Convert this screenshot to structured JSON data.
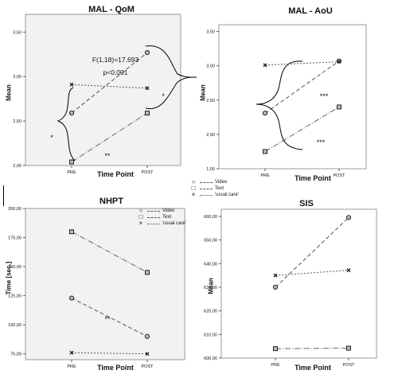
{
  "chart_data": [
    {
      "type": "line",
      "title": "MAL - QoM",
      "xlabel": "Time Point",
      "ylabel": "Mean",
      "categories": [
        "PRE",
        "POST"
      ],
      "yticks": [
        "2,00",
        "2,50",
        "3,00",
        "3,50"
      ],
      "ylim": [
        2.0,
        3.7
      ],
      "series": [
        {
          "values": [
            2.59,
            3.27
          ],
          "marker": "circle"
        },
        {
          "values": [
            2.04,
            2.59
          ],
          "marker": "square"
        },
        {
          "values": [
            2.91,
            2.87
          ],
          "marker": "cross"
        }
      ],
      "annotations": [
        "F(1,18)=17.693",
        "p<0,001",
        "*",
        "*",
        "**"
      ]
    },
    {
      "type": "line",
      "title": "MAL - AoU",
      "xlabel": "Time Point",
      "ylabel": "Mean",
      "categories": [
        "PRE",
        "POST"
      ],
      "yticks": [
        "1,50",
        "2,00",
        "2,50",
        "3,00",
        "3,50"
      ],
      "ylim": [
        1.5,
        3.6
      ],
      "series": [
        {
          "values": [
            2.31,
            3.07
          ],
          "marker": "circle"
        },
        {
          "values": [
            1.75,
            2.4
          ],
          "marker": "square"
        },
        {
          "values": [
            3.01,
            3.06
          ],
          "marker": "cross"
        }
      ],
      "annotations": [
        "***",
        "***"
      ]
    },
    {
      "type": "line",
      "title": "NHPT",
      "xlabel": "Time Point",
      "ylabel": "Time [sec.]",
      "categories": [
        "PRE",
        "POST"
      ],
      "yticks": [
        "75,00",
        "100,00",
        "125,00",
        "150,00",
        "175,00",
        "200,00"
      ],
      "ylim": [
        70,
        200
      ],
      "series": [
        {
          "values": [
            123,
            90
          ],
          "marker": "circle"
        },
        {
          "values": [
            180,
            145
          ],
          "marker": "square"
        },
        {
          "values": [
            76,
            75
          ],
          "marker": "cross"
        }
      ],
      "annotations": [
        "**"
      ]
    },
    {
      "type": "line",
      "title": "SIS",
      "xlabel": "Time Point",
      "ylabel": "Mean",
      "categories": [
        "PRE",
        "POST"
      ],
      "yticks": [
        "600,00",
        "610,00",
        "620,00",
        "630,00",
        "640,00",
        "650,00",
        "660,00"
      ],
      "ylim": [
        600,
        663
      ],
      "series": [
        {
          "values": [
            630,
            659.5
          ],
          "marker": "circle"
        },
        {
          "values": [
            604,
            604.2
          ],
          "marker": "square"
        },
        {
          "values": [
            635,
            637.2
          ],
          "marker": "cross"
        }
      ],
      "annotations": []
    }
  ],
  "legends": [
    {
      "items": [
        {
          "marker": "circle",
          "label": "Video"
        },
        {
          "marker": "square",
          "label": "Text"
        },
        {
          "marker": "cross",
          "label": "'usual care'"
        }
      ]
    },
    {
      "items": [
        {
          "marker": "circle",
          "label": "Video"
        },
        {
          "marker": "square",
          "label": "Text"
        },
        {
          "marker": "cross",
          "label": "'usual care'"
        }
      ]
    }
  ]
}
